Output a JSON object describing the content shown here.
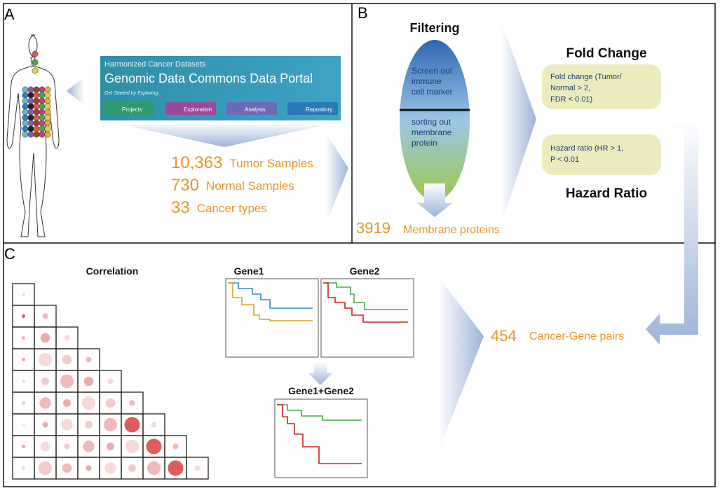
{
  "panel_a": {
    "label": "A",
    "portal": {
      "subtitle": "Harmonized Cancer Datasets",
      "title": "Genomic Data Commons Data Portal",
      "prompt": "Get Started by Exploring:",
      "buttons": [
        "Projects",
        "Exploration",
        "Analysis",
        "Repository"
      ]
    },
    "stats": [
      {
        "number": "10,363",
        "label": "Tumor Samples"
      },
      {
        "number": "730",
        "label": "Normal Samples"
      },
      {
        "number": "33",
        "label": "Cancer types"
      }
    ]
  },
  "panel_b": {
    "label": "B",
    "filtering": "Filtering",
    "screen_out": [
      "Screen out",
      "immune",
      "cell marker"
    ],
    "sorting_out": [
      "sorting out",
      "membrane",
      "protein"
    ],
    "result": {
      "number": "3919",
      "label": "Membrane proteins"
    },
    "fold_change": {
      "title": "Fold Change",
      "criteria": [
        "Fold change (Tumor/",
        "Normal > 2,",
        "FDR < 0.01)"
      ]
    },
    "hazard_ratio": {
      "title": "Hazard Ratio",
      "criteria": [
        "Hazard ratio (HR > 1,",
        "P < 0.01"
      ]
    }
  },
  "panel_c": {
    "label": "C",
    "correlation": "Correlation",
    "gene1": "Gene1",
    "gene2": "Gene2",
    "combined": "Gene1+Gene2",
    "result": {
      "number": "454",
      "label": "Cancer-Gene pairs"
    }
  }
}
